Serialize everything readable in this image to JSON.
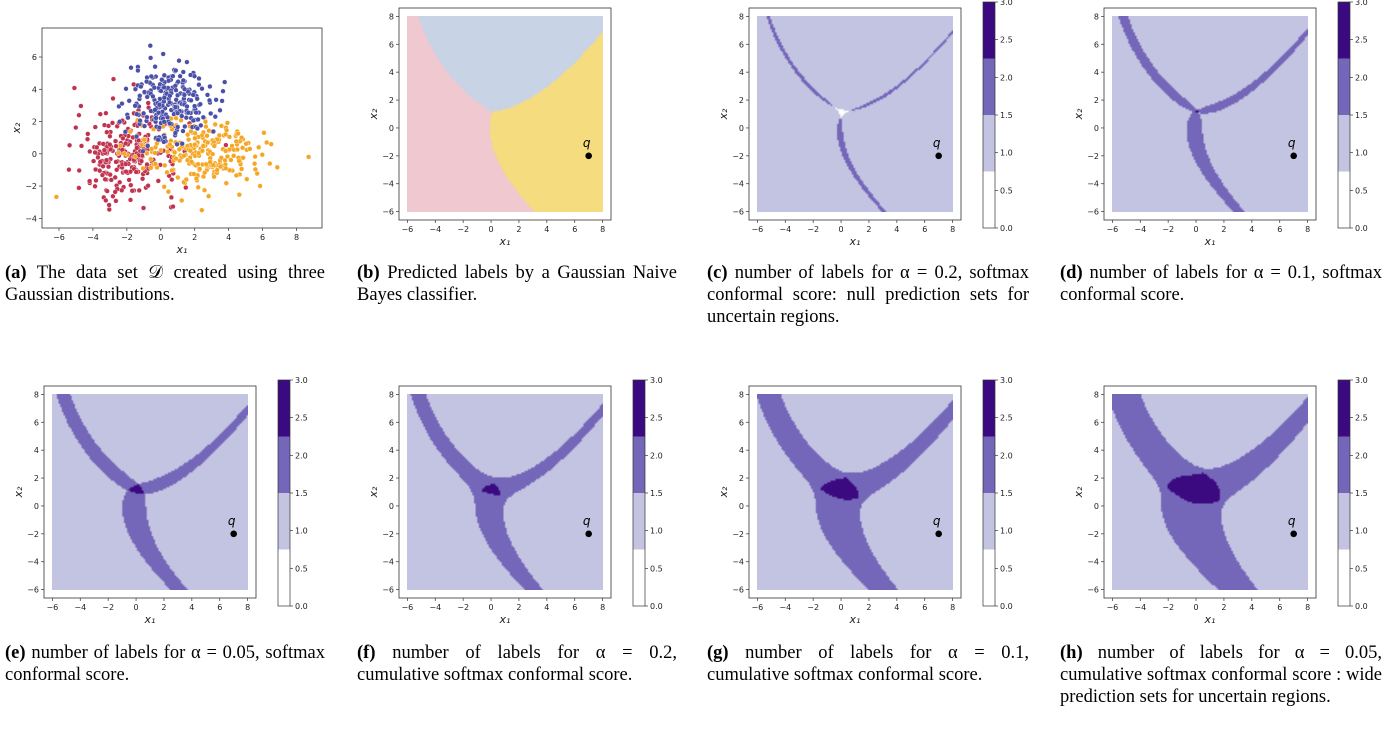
{
  "figure": {
    "panels": [
      {
        "id": "a",
        "letter": "(a)",
        "caption": "The data set 𝒟 created using three Gaussian distributions."
      },
      {
        "id": "b",
        "letter": "(b)",
        "caption": "Predicted labels by a Gaussian Naive Bayes classifier."
      },
      {
        "id": "c",
        "letter": "(c)",
        "caption": "number of labels for α = 0.2, softmax conformal score: null prediction sets for uncertain regions."
      },
      {
        "id": "d",
        "letter": "(d)",
        "caption": "number of labels for α = 0.1, softmax conformal score."
      },
      {
        "id": "e",
        "letter": "(e)",
        "caption": "number of labels for α = 0.05, softmax conformal score."
      },
      {
        "id": "f",
        "letter": "(f)",
        "caption": "number of labels for α = 0.2, cumulative softmax conformal score."
      },
      {
        "id": "g",
        "letter": "(g)",
        "caption": "number of labels for α = 0.1, cumulative softmax conformal score."
      },
      {
        "id": "h",
        "letter": "(h)",
        "caption": "number of labels for α = 0.05, cumulative softmax conformal score : wide prediction sets for uncertain regions."
      }
    ]
  },
  "axes": {
    "xlabel": "x₁",
    "ylabel": "x₂",
    "scatter_xticks": [
      "−6",
      "−4",
      "−2",
      "0",
      "2",
      "4",
      "6",
      "8"
    ],
    "scatter_yticks": [
      "−4",
      "−2",
      "0",
      "2",
      "4",
      "6"
    ],
    "map_xticks": [
      "−6",
      "−4",
      "−2",
      "0",
      "2",
      "4",
      "6",
      "8"
    ],
    "map_yticks": [
      "−6",
      "−4",
      "−2",
      "0",
      "2",
      "4",
      "6",
      "8"
    ],
    "colorbar_ticks": [
      "0.0",
      "0.5",
      "1.0",
      "1.5",
      "2.0",
      "2.5",
      "3.0"
    ]
  },
  "query_point": {
    "label": "q",
    "x": 7,
    "y": -2
  },
  "colors": {
    "blue_class": "#4a4fa8",
    "red_class": "#c0334f",
    "orange_class": "#f5a623",
    "region_pink": "#f0c8cf",
    "region_blue": "#c9d3e6",
    "region_yellow": "#f5dc7e",
    "cnt0": "#ffffff",
    "cnt1": "#c3c3e2",
    "cnt2": "#7466b8",
    "cnt3": "#3b0a80"
  }
}
